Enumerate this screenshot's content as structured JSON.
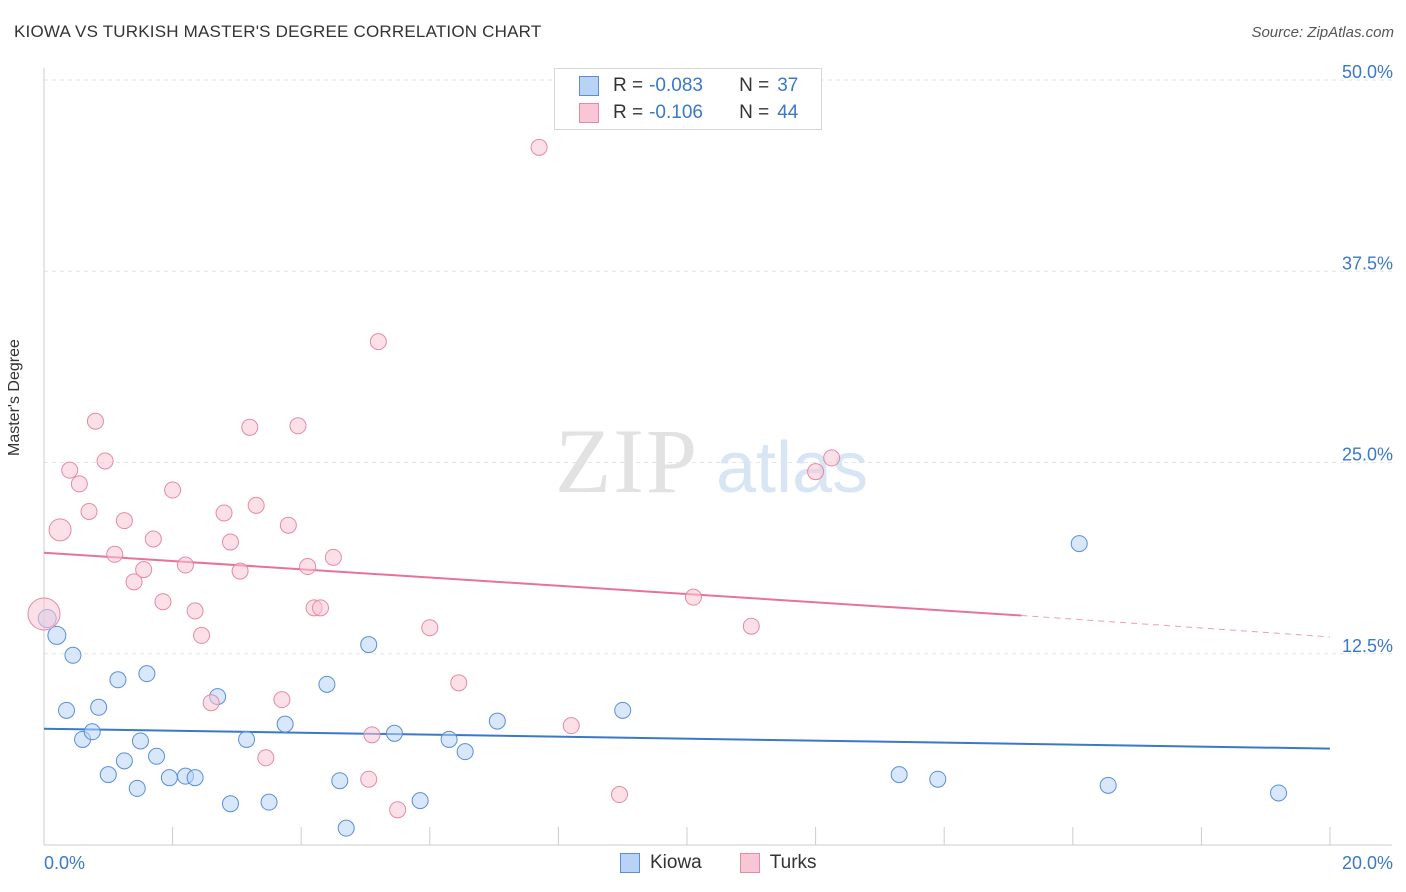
{
  "header": {
    "title": "KIOWA VS TURKISH MASTER'S DEGREE CORRELATION CHART",
    "source": "Source: ZipAtlas.com"
  },
  "watermark": {
    "zip": "ZIP",
    "atlas": "atlas"
  },
  "legend": {
    "rows": [
      {
        "swatch_fill": "#b8d3f5",
        "swatch_border": "#5a8fd6",
        "r_label": "R =",
        "r_value": "-0.083",
        "n_label": "N =",
        "n_value": "37"
      },
      {
        "swatch_fill": "#f9c6d5",
        "swatch_border": "#e58aa6",
        "r_label": "R =",
        "r_value": "-0.106",
        "n_label": "N =",
        "n_value": "44"
      }
    ]
  },
  "bottom_legend": [
    {
      "label": "Kiowa",
      "fill": "#b8d3f5",
      "border": "#5a8fd6"
    },
    {
      "label": "Turks",
      "fill": "#f9c6d5",
      "border": "#e58aa6"
    }
  ],
  "chart_data": {
    "type": "scatter",
    "title": "KIOWA VS TURKISH MASTER'S DEGREE CORRELATION CHART",
    "xlabel": "",
    "ylabel": "Master's Degree",
    "xlim": [
      0,
      20
    ],
    "ylim": [
      0,
      50
    ],
    "x_tick_labels": [
      "0.0%",
      "20.0%"
    ],
    "y_ticks": [
      12.5,
      25.0,
      37.5,
      50.0
    ],
    "y_tick_labels": [
      "12.5%",
      "25.0%",
      "37.5%",
      "50.0%"
    ],
    "grid": "horizontal dashed",
    "legend_position": "top-center",
    "colors": {
      "Kiowa": "#3a78c8",
      "Turks": "#e8729a"
    },
    "series": [
      {
        "name": "Kiowa",
        "color": "#3a78c8",
        "trend": {
          "x": [
            0.0,
            20.0
          ],
          "y": [
            7.6,
            6.3
          ]
        },
        "points": [
          [
            0.05,
            14.8,
            9
          ],
          [
            0.2,
            13.7,
            9
          ],
          [
            0.35,
            8.8,
            8
          ],
          [
            0.45,
            12.4,
            8
          ],
          [
            0.6,
            6.9,
            8
          ],
          [
            0.75,
            7.4,
            8
          ],
          [
            0.85,
            9.0,
            8
          ],
          [
            1.0,
            4.6,
            8
          ],
          [
            1.15,
            10.8,
            8
          ],
          [
            1.25,
            5.5,
            8
          ],
          [
            1.45,
            3.7,
            8
          ],
          [
            1.5,
            6.8,
            8
          ],
          [
            1.6,
            11.2,
            8
          ],
          [
            1.75,
            5.8,
            8
          ],
          [
            1.95,
            4.4,
            8
          ],
          [
            2.2,
            4.5,
            8
          ],
          [
            2.35,
            4.4,
            8
          ],
          [
            2.7,
            9.7,
            8
          ],
          [
            2.9,
            2.7,
            8
          ],
          [
            3.15,
            6.9,
            8
          ],
          [
            3.5,
            2.8,
            8
          ],
          [
            3.75,
            7.9,
            8
          ],
          [
            4.4,
            10.5,
            8
          ],
          [
            4.6,
            4.2,
            8
          ],
          [
            4.7,
            1.1,
            8
          ],
          [
            5.05,
            13.1,
            8
          ],
          [
            5.45,
            7.3,
            8
          ],
          [
            5.85,
            2.9,
            8
          ],
          [
            6.3,
            6.9,
            8
          ],
          [
            6.55,
            6.1,
            8
          ],
          [
            7.05,
            8.1,
            8
          ],
          [
            9.0,
            8.8,
            8
          ],
          [
            13.3,
            4.6,
            8
          ],
          [
            13.9,
            4.3,
            8
          ],
          [
            16.1,
            19.7,
            8
          ],
          [
            16.55,
            3.9,
            8
          ],
          [
            19.2,
            3.4,
            8
          ]
        ]
      },
      {
        "name": "Turks",
        "color": "#e8729a",
        "trend": {
          "x": [
            0.0,
            15.2
          ],
          "y": [
            19.1,
            15.0
          ]
        },
        "trend_dashed": {
          "x": [
            15.2,
            20.0
          ],
          "y": [
            15.0,
            13.6
          ]
        },
        "points": [
          [
            0.0,
            15.1,
            16
          ],
          [
            0.25,
            20.6,
            11
          ],
          [
            0.4,
            24.5,
            8
          ],
          [
            0.55,
            23.6,
            8
          ],
          [
            0.7,
            21.8,
            8
          ],
          [
            0.8,
            27.7,
            8
          ],
          [
            0.95,
            25.1,
            8
          ],
          [
            1.1,
            19.0,
            8
          ],
          [
            1.25,
            21.2,
            8
          ],
          [
            1.4,
            17.2,
            8
          ],
          [
            1.55,
            18.0,
            8
          ],
          [
            1.7,
            20.0,
            8
          ],
          [
            1.85,
            15.9,
            8
          ],
          [
            2.0,
            23.2,
            8
          ],
          [
            2.2,
            18.3,
            8
          ],
          [
            2.35,
            15.3,
            8
          ],
          [
            2.45,
            13.7,
            8
          ],
          [
            2.6,
            9.3,
            8
          ],
          [
            2.8,
            21.7,
            8
          ],
          [
            2.9,
            19.8,
            8
          ],
          [
            3.05,
            17.9,
            8
          ],
          [
            3.2,
            27.3,
            8
          ],
          [
            3.3,
            22.2,
            8
          ],
          [
            3.45,
            5.7,
            8
          ],
          [
            3.7,
            9.5,
            8
          ],
          [
            3.8,
            20.9,
            8
          ],
          [
            3.95,
            27.4,
            8
          ],
          [
            4.1,
            18.2,
            8
          ],
          [
            4.2,
            15.5,
            8
          ],
          [
            4.3,
            15.5,
            8
          ],
          [
            4.5,
            18.8,
            8
          ],
          [
            5.2,
            32.9,
            8
          ],
          [
            5.1,
            7.2,
            8
          ],
          [
            5.05,
            4.3,
            8
          ],
          [
            5.5,
            2.3,
            8
          ],
          [
            6.0,
            14.2,
            8
          ],
          [
            6.45,
            10.6,
            8
          ],
          [
            7.7,
            45.6,
            8
          ],
          [
            8.2,
            7.8,
            8
          ],
          [
            8.95,
            3.3,
            8
          ],
          [
            10.1,
            16.2,
            8
          ],
          [
            11.0,
            14.3,
            8
          ],
          [
            12.0,
            24.4,
            8
          ],
          [
            12.25,
            25.3,
            8
          ]
        ]
      }
    ]
  }
}
